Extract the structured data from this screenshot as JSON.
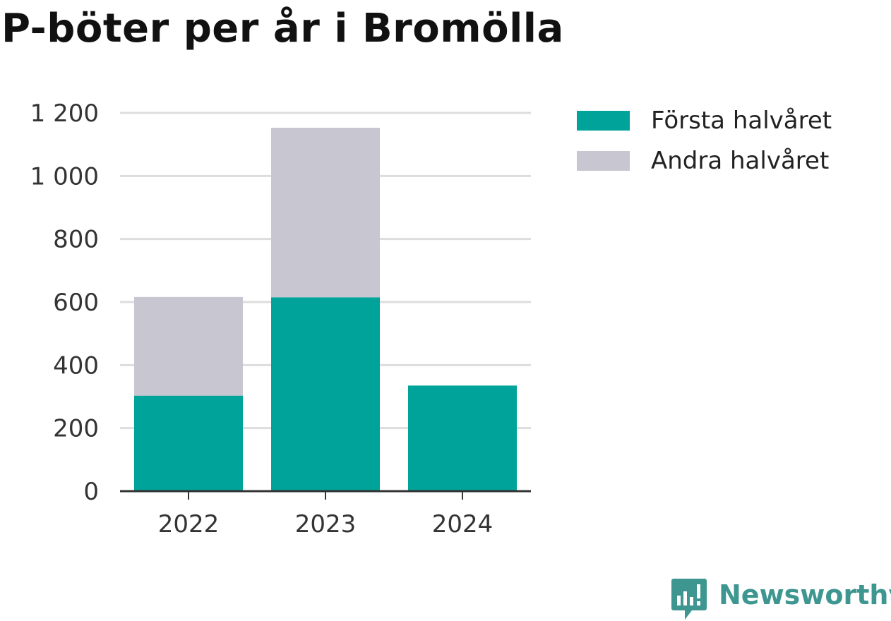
{
  "title": "P-böter per år i Bromölla",
  "chart_data": {
    "type": "bar",
    "stacked": true,
    "categories": [
      "2022",
      "2023",
      "2024"
    ],
    "series": [
      {
        "name": "Första halvåret",
        "values": [
          303,
          615,
          335
        ],
        "color": "#00a39a"
      },
      {
        "name": "Andra halvåret",
        "values": [
          313,
          538,
          0
        ],
        "color": "#c8c7d1"
      }
    ],
    "ylim": [
      0,
      1200
    ],
    "yticks": [
      0,
      200,
      400,
      600,
      800,
      1000,
      1200
    ],
    "ytick_labels": [
      "0",
      "200",
      "400",
      "600",
      "800",
      "1 000",
      "1 200"
    ],
    "grid": true,
    "legend_position": "right",
    "xlabel": "",
    "ylabel": ""
  },
  "brand": {
    "name": "Newsworthy",
    "icon": "newsworthy-logo-icon",
    "color": "#3e9690"
  }
}
